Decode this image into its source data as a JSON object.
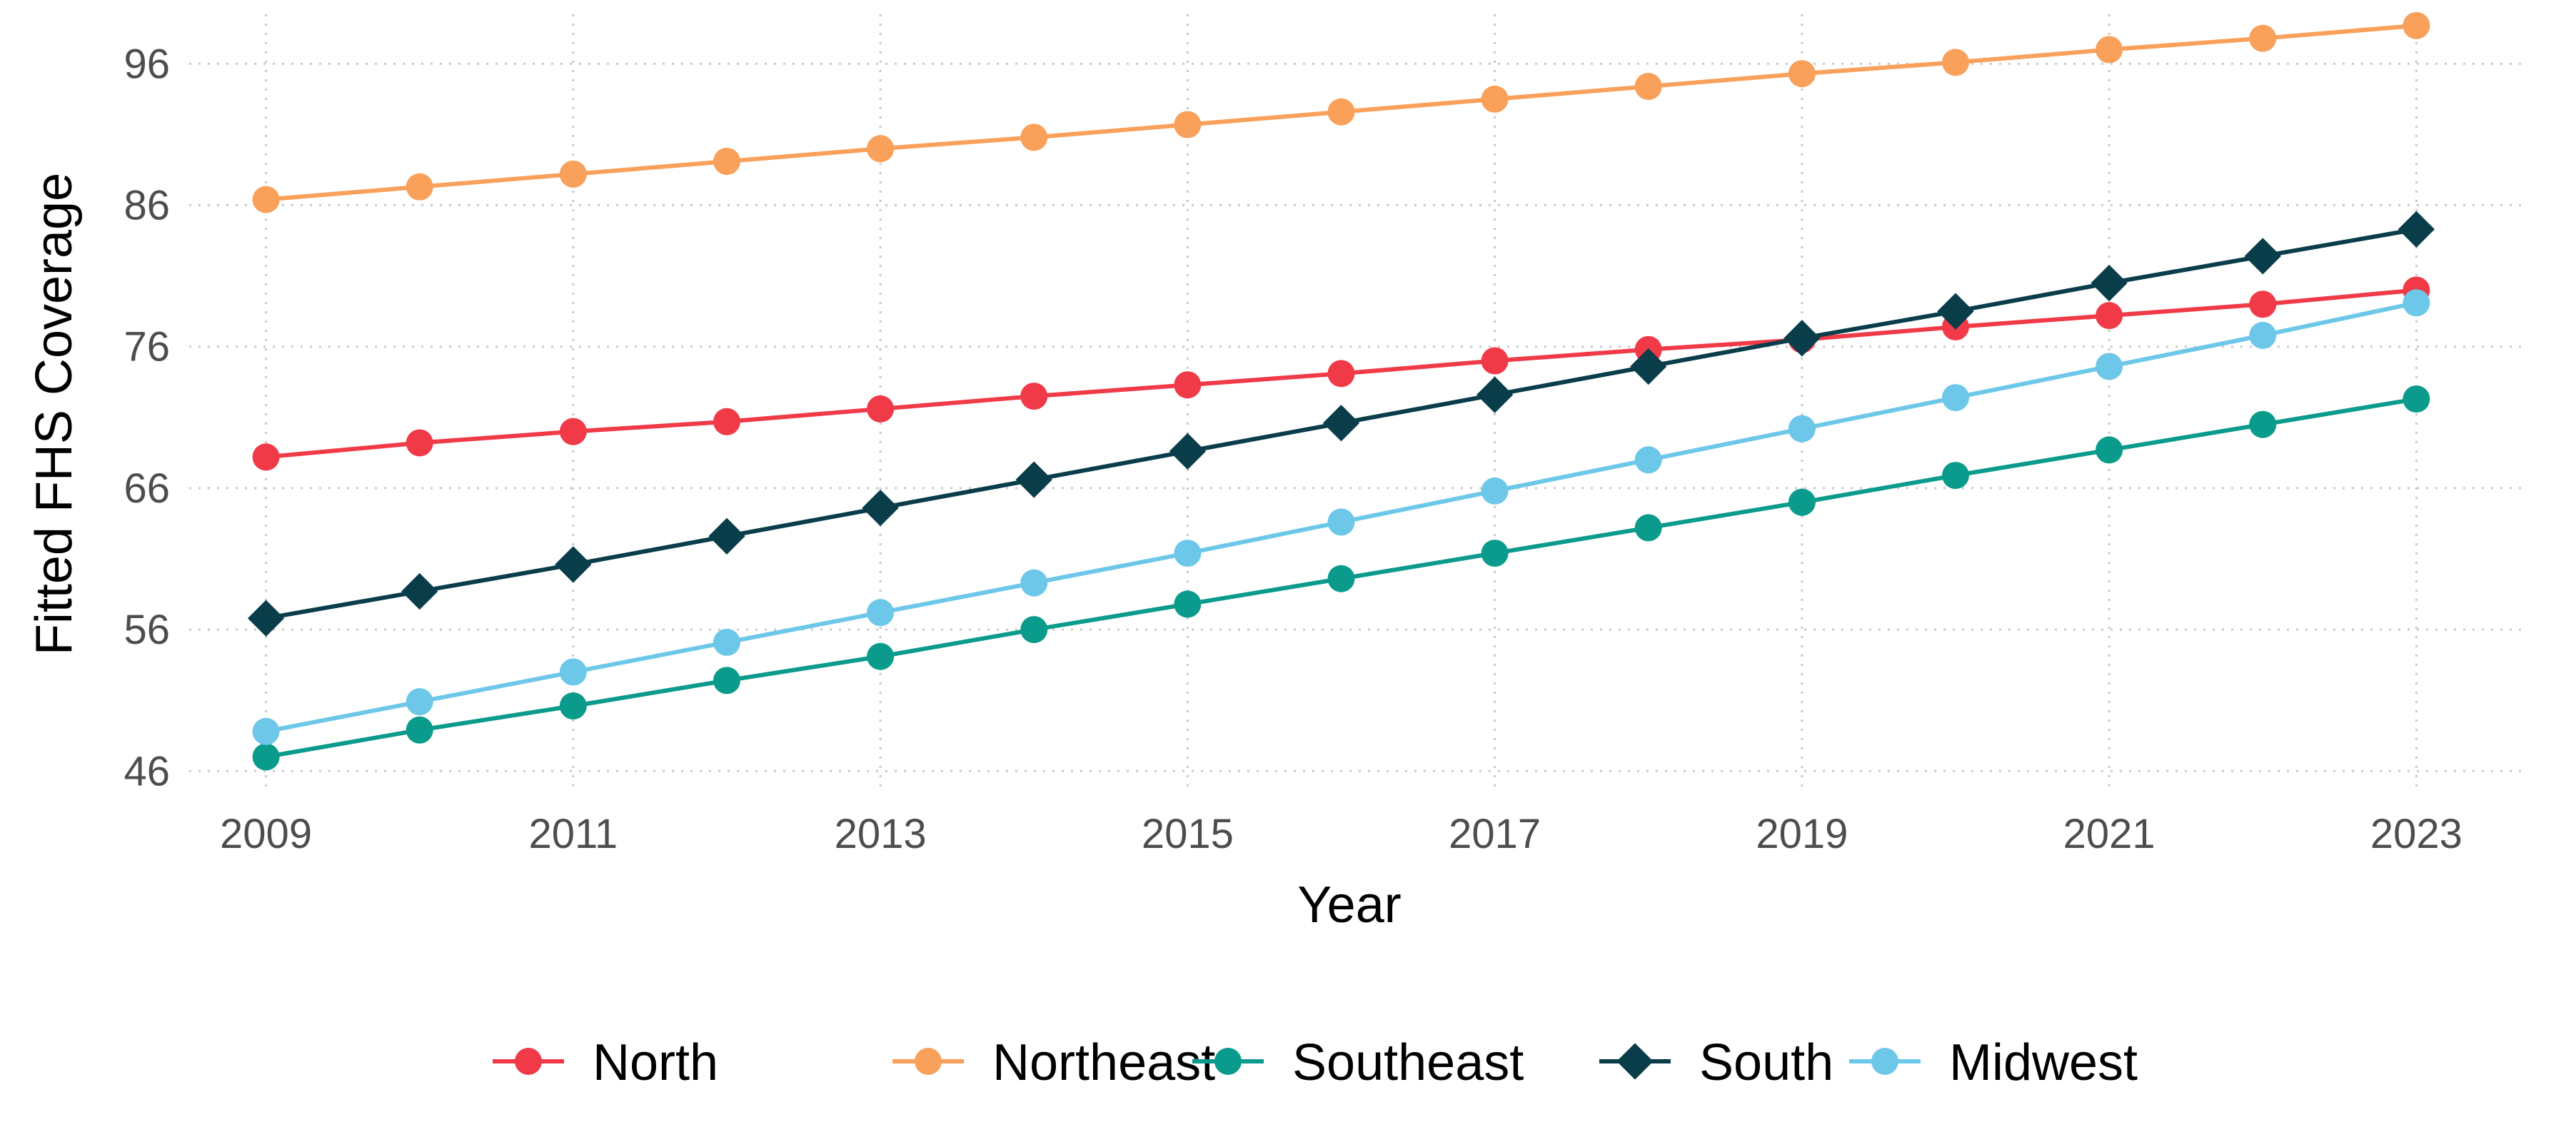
{
  "chart_data": {
    "type": "line",
    "title": "",
    "xlabel": "Year",
    "ylabel": "Fitted FHS Coverage",
    "x": [
      2009,
      2010,
      2011,
      2012,
      2013,
      2014,
      2015,
      2016,
      2017,
      2018,
      2019,
      2020,
      2021,
      2022,
      2023
    ],
    "x_ticks": [
      "2009",
      "2011",
      "2013",
      "2015",
      "2017",
      "2019",
      "2021",
      "2023"
    ],
    "y_ticks": [
      "46",
      "56",
      "66",
      "76",
      "86",
      "96"
    ],
    "xlim": [
      2008.5,
      2023.7
    ],
    "ylim": [
      44.5,
      99.5
    ],
    "grid": true,
    "legend_position": "bottom",
    "series": [
      {
        "name": "North",
        "color": "#f03a47",
        "marker": "circle",
        "values": [
          68.2,
          69.2,
          70.0,
          70.7,
          71.6,
          72.5,
          73.3,
          74.1,
          75.0,
          75.8,
          76.5,
          77.4,
          78.2,
          79.0,
          80.0
        ]
      },
      {
        "name": "Northeast",
        "color": "#f9a05a",
        "marker": "circle",
        "values": [
          86.4,
          87.3,
          88.2,
          89.1,
          90.0,
          90.8,
          91.7,
          92.6,
          93.5,
          94.4,
          95.3,
          96.1,
          97.0,
          97.8,
          98.7
        ]
      },
      {
        "name": "Southeast",
        "color": "#0a9b8c",
        "marker": "circle",
        "values": [
          47.0,
          48.9,
          50.6,
          52.4,
          54.1,
          56.0,
          57.8,
          59.6,
          61.4,
          63.2,
          65.0,
          66.9,
          68.7,
          70.5,
          72.3
        ]
      },
      {
        "name": "South",
        "color": "#0a3d4a",
        "marker": "diamond",
        "values": [
          56.8,
          58.7,
          60.6,
          62.6,
          64.6,
          66.6,
          68.6,
          70.6,
          72.6,
          74.6,
          76.6,
          78.5,
          80.5,
          82.4,
          84.3
        ]
      },
      {
        "name": "Midwest",
        "color": "#6dc7e8",
        "marker": "circle",
        "values": [
          48.8,
          50.9,
          53.0,
          55.1,
          57.2,
          59.3,
          61.4,
          63.6,
          65.8,
          68.0,
          70.2,
          72.4,
          74.6,
          76.8,
          79.1
        ]
      }
    ]
  }
}
